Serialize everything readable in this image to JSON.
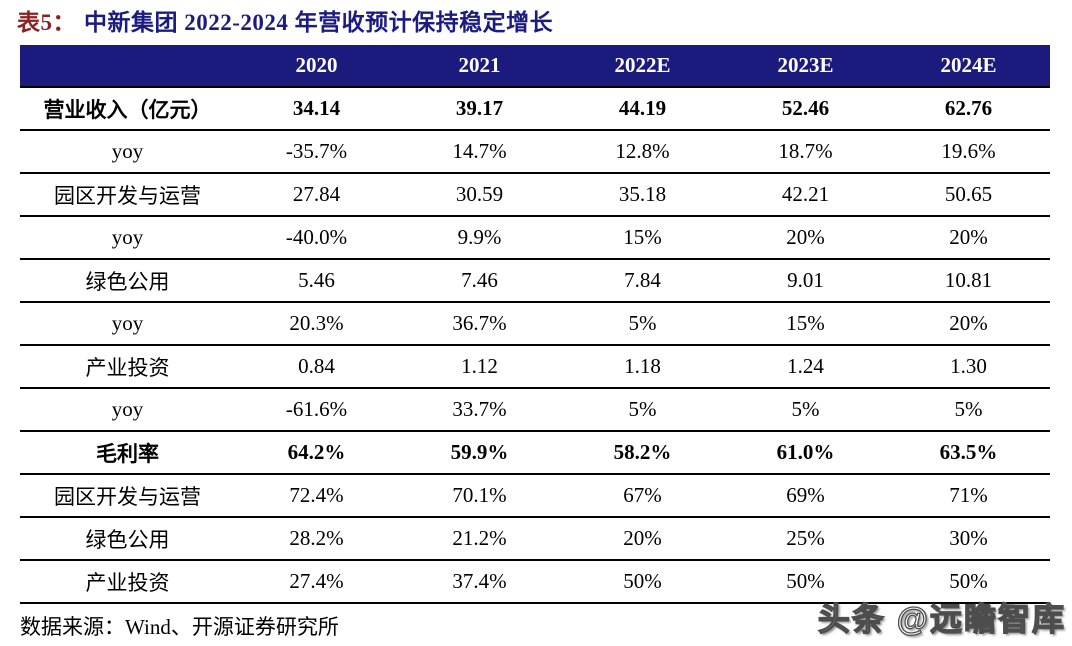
{
  "title": {
    "prefix": "表5：",
    "text": "中新集团 2022-2024 年营收预计保持稳定增长"
  },
  "colors": {
    "header_bg": "#1b1b7e",
    "title_prefix": "#8b2121",
    "title_text": "#1b1b82",
    "row_border": "#000000",
    "body_text": "#000000",
    "header_text": "#ffffff",
    "watermark_fill": "#ffffff",
    "watermark_outline": "#4d4d4d"
  },
  "table": {
    "columns": [
      "",
      "2020",
      "2021",
      "2022E",
      "2023E",
      "2024E"
    ],
    "rows": [
      {
        "label": "营业收入（亿元）",
        "bold": true,
        "values": [
          "34.14",
          "39.17",
          "44.19",
          "52.46",
          "62.76"
        ]
      },
      {
        "label": "yoy",
        "bold": false,
        "values": [
          "-35.7%",
          "14.7%",
          "12.8%",
          "18.7%",
          "19.6%"
        ]
      },
      {
        "label": "园区开发与运营",
        "bold": false,
        "values": [
          "27.84",
          "30.59",
          "35.18",
          "42.21",
          "50.65"
        ]
      },
      {
        "label": "yoy",
        "bold": false,
        "values": [
          "-40.0%",
          "9.9%",
          "15%",
          "20%",
          "20%"
        ]
      },
      {
        "label": "绿色公用",
        "bold": false,
        "values": [
          "5.46",
          "7.46",
          "7.84",
          "9.01",
          "10.81"
        ]
      },
      {
        "label": "yoy",
        "bold": false,
        "values": [
          "20.3%",
          "36.7%",
          "5%",
          "15%",
          "20%"
        ]
      },
      {
        "label": "产业投资",
        "bold": false,
        "values": [
          "0.84",
          "1.12",
          "1.18",
          "1.24",
          "1.30"
        ]
      },
      {
        "label": "yoy",
        "bold": false,
        "values": [
          "-61.6%",
          "33.7%",
          "5%",
          "5%",
          "5%"
        ]
      },
      {
        "label": "毛利率",
        "bold": true,
        "values": [
          "64.2%",
          "59.9%",
          "58.2%",
          "61.0%",
          "63.5%"
        ]
      },
      {
        "label": "园区开发与运营",
        "bold": false,
        "values": [
          "72.4%",
          "70.1%",
          "67%",
          "69%",
          "71%"
        ]
      },
      {
        "label": "绿色公用",
        "bold": false,
        "values": [
          "28.2%",
          "21.2%",
          "20%",
          "25%",
          "30%"
        ]
      },
      {
        "label": "产业投资",
        "bold": false,
        "values": [
          "27.4%",
          "37.4%",
          "50%",
          "50%",
          "50%"
        ]
      }
    ]
  },
  "footer": {
    "source": "数据来源：Wind、开源证券研究所"
  },
  "watermark": {
    "text": "头条 @远瞻智库"
  }
}
